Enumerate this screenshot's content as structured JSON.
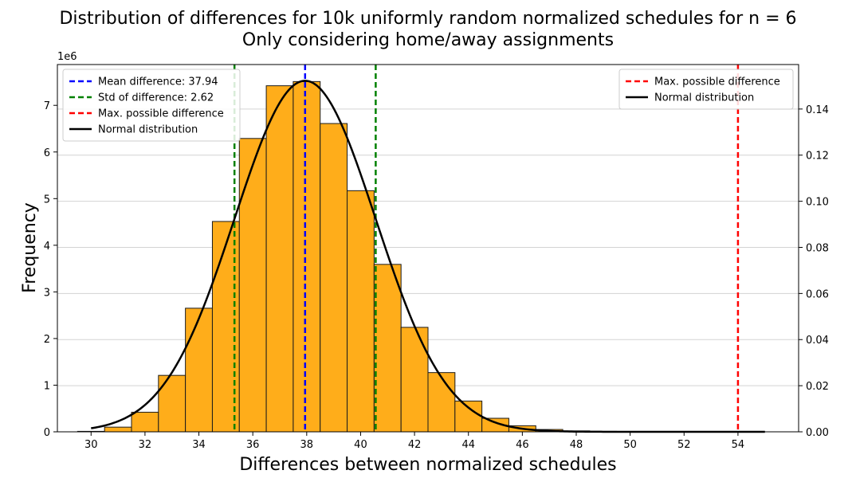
{
  "chart_data": {
    "type": "bar",
    "title_line1": "Distribution of differences for 10k uniformly random normalized schedules for n = 6",
    "title_line2": "Only considering home/away assignments",
    "xlabel": "Differences between normalized schedules",
    "ylabel": "Frequency",
    "y_offset_label": "1e6",
    "xlim": [
      28.75,
      56.25
    ],
    "ylim_left": [
      0,
      7.875
    ],
    "ylim_right": [
      0,
      0.1593
    ],
    "x_ticks": [
      30,
      32,
      34,
      36,
      38,
      40,
      42,
      44,
      46,
      48,
      50,
      52,
      54
    ],
    "y_left_ticks": [
      0,
      1,
      2,
      3,
      4,
      5,
      6,
      7
    ],
    "y_right_ticks": [
      0.0,
      0.02,
      0.04,
      0.06,
      0.08,
      0.1,
      0.12,
      0.14
    ],
    "y_right_tick_labels": [
      "0.00",
      "0.02",
      "0.04",
      "0.06",
      "0.08",
      "0.10",
      "0.12",
      "0.14"
    ],
    "grid": "horizontal",
    "histogram": {
      "bin_centers": [
        30,
        31,
        32,
        33,
        34,
        35,
        36,
        37,
        38,
        39,
        40,
        41,
        42,
        43,
        44,
        45,
        46,
        47,
        48,
        49,
        50,
        51,
        52,
        53,
        54
      ],
      "bin_width": 1,
      "values_millions": [
        0.01,
        0.1,
        0.42,
        1.21,
        2.65,
        4.51,
        6.29,
        7.42,
        7.51,
        6.61,
        5.17,
        3.59,
        2.24,
        1.27,
        0.66,
        0.29,
        0.13,
        0.05,
        0.02,
        0.01,
        0.005,
        0.003,
        0.002,
        0.001,
        0.001
      ],
      "color": "#ffad1a",
      "edge_color": "#1a1a1a"
    },
    "normal_curve": {
      "mean": 37.94,
      "std": 2.62,
      "x_range": [
        30,
        55
      ],
      "color": "#000000"
    },
    "vlines": [
      {
        "name": "mean",
        "x": 37.94,
        "color": "#0000ff"
      },
      {
        "name": "std-low",
        "x": 35.32,
        "color": "#008000"
      },
      {
        "name": "std-high",
        "x": 40.56,
        "color": "#008000"
      },
      {
        "name": "max",
        "x": 54,
        "color": "#ff0000"
      }
    ],
    "legend_left": {
      "position": "upper-left",
      "entries": [
        {
          "label": "Mean difference: 37.94",
          "color": "#0000ff",
          "style": "dashed"
        },
        {
          "label": "Std of difference: 2.62",
          "color": "#008000",
          "style": "dashed"
        },
        {
          "label": "Max. possible difference",
          "color": "#ff0000",
          "style": "dashed"
        },
        {
          "label": "Normal distribution",
          "color": "#000000",
          "style": "solid"
        }
      ]
    },
    "legend_right": {
      "position": "upper-right",
      "entries": [
        {
          "label": "Max. possible difference",
          "color": "#ff0000",
          "style": "dashed"
        },
        {
          "label": "Normal distribution",
          "color": "#000000",
          "style": "solid"
        }
      ]
    }
  }
}
